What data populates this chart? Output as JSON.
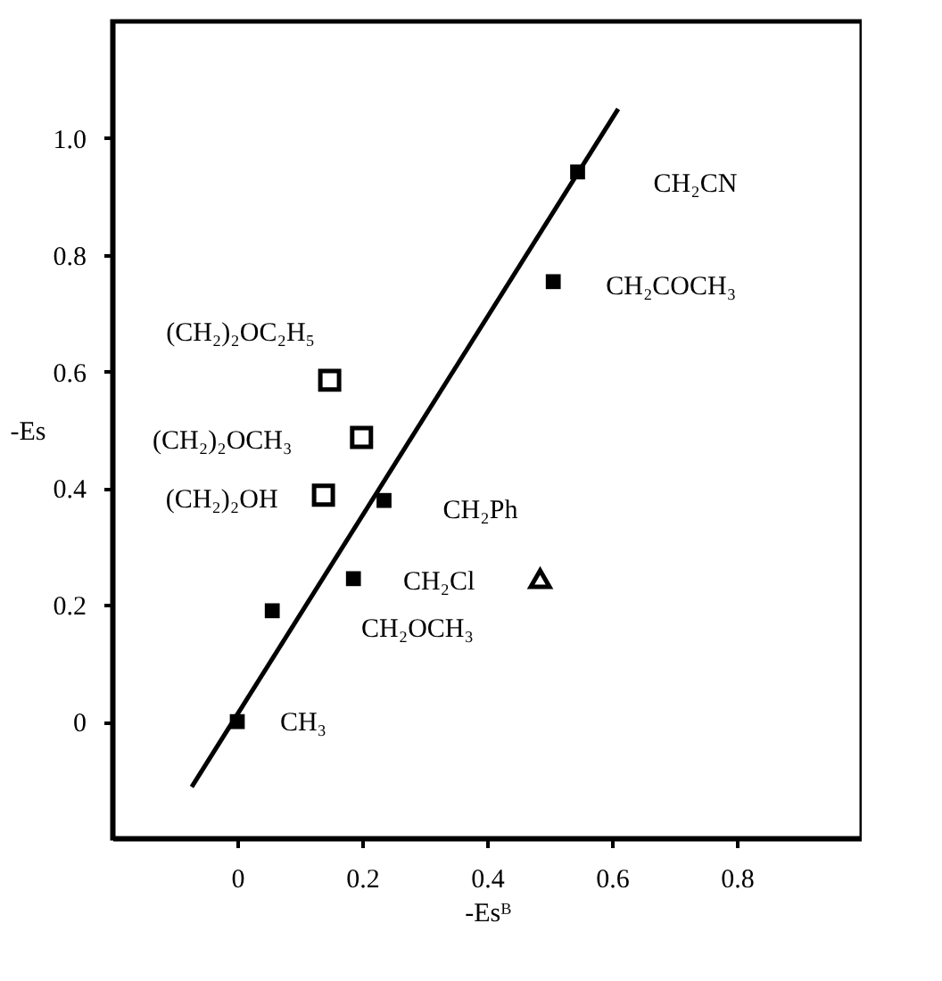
{
  "chart_data": {
    "type": "scatter",
    "xlabel": "-Esᴮ",
    "ylabel": "-Es",
    "xlim": [
      -0.2,
      1.0
    ],
    "ylim": [
      -0.2,
      1.2
    ],
    "xticks": [
      0,
      0.2,
      0.4,
      0.6,
      0.8
    ],
    "yticks": [
      0,
      0.2,
      0.4,
      0.6,
      0.8,
      {
        "value": 1.0,
        "label": "1.0"
      }
    ],
    "grid": false,
    "series": [
      {
        "color": "#000000",
        "marker": "square",
        "x": [
          0,
          0.056,
          0.186,
          0.235,
          0.506,
          0.545
        ],
        "values": [
          0,
          0.19,
          0.245,
          0.379,
          0.754,
          0.942
        ]
      },
      {
        "color": "#000000",
        "marker": "square",
        "x": [
          0.138,
          0.148,
          0.199
        ],
        "values": [
          0.388,
          0.585,
          0.487
        ]
      },
      {
        "color": "#000000",
        "marker": "triangle",
        "x": [
          0.485
        ],
        "values": [
          0.245
        ]
      },
      {
        "type": "line",
        "color": "#000000",
        "marker": "none",
        "line_style": "solid",
        "x": [
          -0.073,
          0.61
        ],
        "values": [
          -0.112,
          1.05
        ]
      }
    ],
    "annotations": [
      {
        "text": "CH₂CN",
        "x": 0.545,
        "y": 0.942
      },
      {
        "text": "CH₂COCH₃",
        "x": 0.506,
        "y": 0.754
      },
      {
        "text": "(CH₂)₂OC₂H₅",
        "x": 0.148,
        "y": 0.585
      },
      {
        "text": "(CH₂)₂OCH₃",
        "x": 0.199,
        "y": 0.487
      },
      {
        "text": "(CH₂)₂OH",
        "x": 0.138,
        "y": 0.388
      },
      {
        "text": "CH₂Ph",
        "x": 0.235,
        "y": 0.379
      },
      {
        "text": "CH₂Cl",
        "x": 0.186,
        "y": 0.245
      },
      "CH₂OCH₃",
      {
        "text": "CH₃",
        "x": 0,
        "y": 0
      }
    ]
  }
}
